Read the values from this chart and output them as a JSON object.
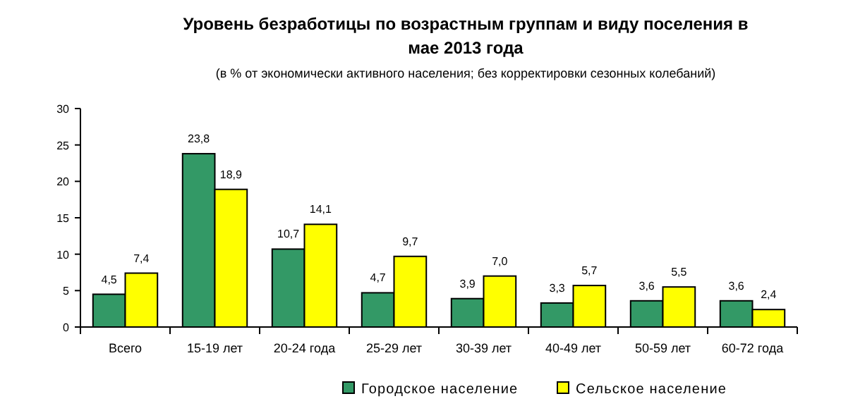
{
  "chart_data": {
    "type": "bar",
    "title": "Уровень безработицы по возрастным группам и виду поселения в мае 2013 года",
    "subtitle": "(в % от экономически активного населения; без корректировки сезонных колебаний)",
    "categories": [
      "Всего",
      "15-19 лет",
      "20-24 года",
      "25-29 лет",
      "30-39 лет",
      "40-49 лет",
      "50-59 лет",
      "60-72 года"
    ],
    "series": [
      {
        "name": "Городское население",
        "color": "#339966",
        "values": [
          4.5,
          23.8,
          10.7,
          4.7,
          3.9,
          3.3,
          3.6,
          3.6
        ],
        "value_labels": [
          "4,5",
          "23,8",
          "10,7",
          "4,7",
          "3,9",
          "3,3",
          "3,6",
          "3,6"
        ]
      },
      {
        "name": "Сельское население",
        "color": "#ffff00",
        "values": [
          7.4,
          18.9,
          14.1,
          9.7,
          7.0,
          5.7,
          5.5,
          2.4
        ],
        "value_labels": [
          "7,4",
          "18,9",
          "14,1",
          "9,7",
          "7,0",
          "5,7",
          "5,5",
          "2,4"
        ]
      }
    ],
    "ylim": [
      0,
      30
    ],
    "yticks": [
      0,
      5,
      10,
      15,
      20,
      25,
      30
    ],
    "grid": false,
    "legend": "bottom"
  }
}
